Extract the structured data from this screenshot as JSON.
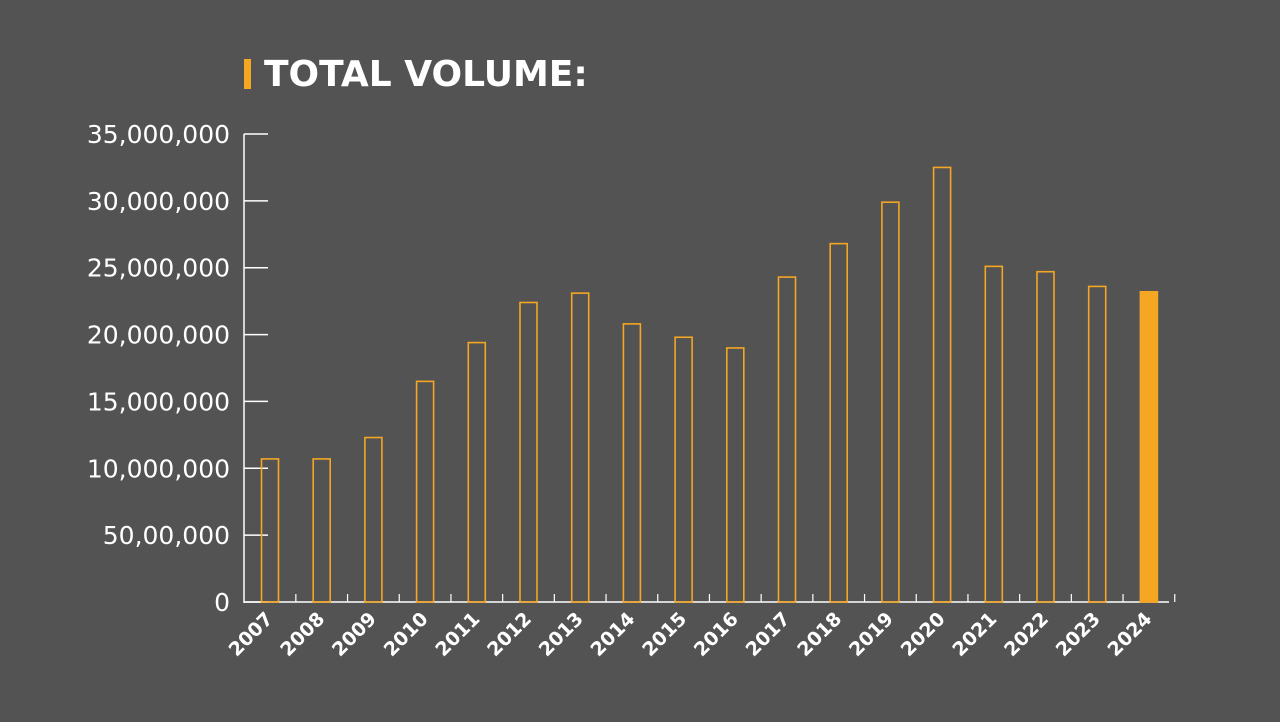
{
  "title": "TOTAL VOLUME:",
  "colors": {
    "background": "#535353",
    "accent": "#f5a623",
    "axis": "#ffffff",
    "text": "#ffffff"
  },
  "chart_data": {
    "type": "bar",
    "title": "TOTAL VOLUME:",
    "xlabel": "",
    "ylabel": "",
    "ylim": [
      0,
      35000000
    ],
    "y_ticks": [
      0,
      5000000,
      10000000,
      15000000,
      20000000,
      25000000,
      30000000,
      35000000
    ],
    "y_tick_labels": [
      "0",
      "50,00,000",
      "10,000,000",
      "15,000,000",
      "20,000,000",
      "25,000,000",
      "30,000,000",
      "35,000,000"
    ],
    "grid": false,
    "categories": [
      "2007",
      "2008",
      "2009",
      "2010",
      "2011",
      "2012",
      "2013",
      "2014",
      "2015",
      "2016",
      "2017",
      "2018",
      "2019",
      "2020",
      "2021",
      "2022",
      "2023",
      "2024"
    ],
    "values": [
      10700000,
      10700000,
      12300000,
      16500000,
      19400000,
      22400000,
      23100000,
      20800000,
      19800000,
      19000000,
      24300000,
      26800000,
      29900000,
      32500000,
      25100000,
      24700000,
      23600000,
      23200000
    ],
    "bar_styles": [
      "outline",
      "outline",
      "outline",
      "outline",
      "outline",
      "outline",
      "outline",
      "outline",
      "outline",
      "outline",
      "outline",
      "outline",
      "outline",
      "outline",
      "outline",
      "outline",
      "outline",
      "filled"
    ]
  }
}
